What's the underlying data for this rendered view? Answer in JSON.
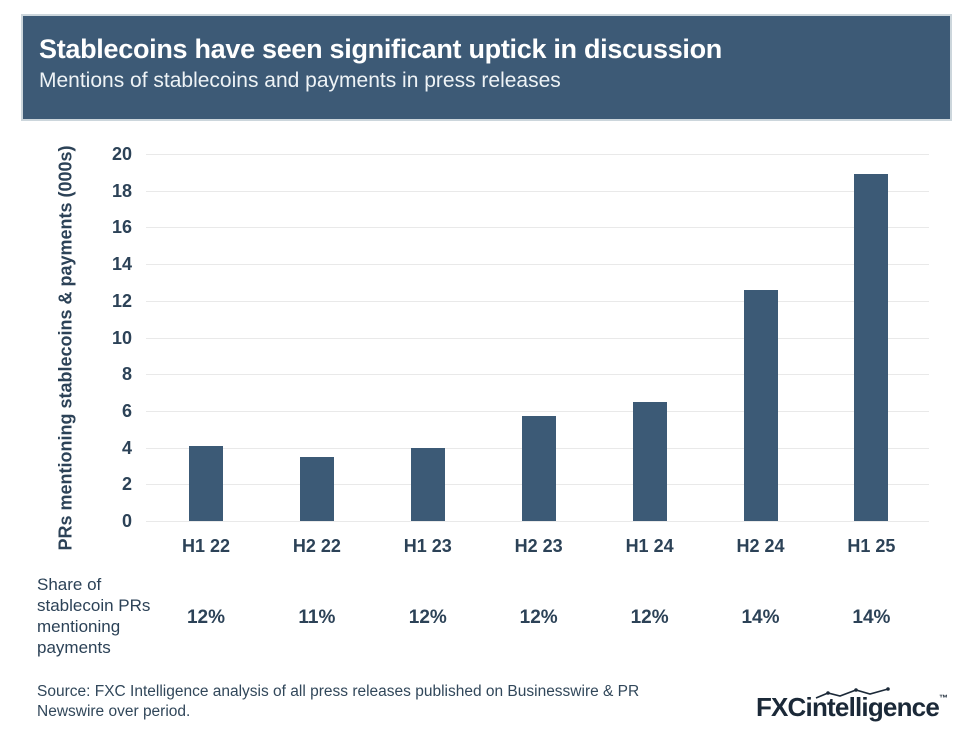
{
  "header": {
    "title": "Stablecoins have seen significant uptick in discussion",
    "subtitle": "Mentions of stablecoins and payments in press releases"
  },
  "chart_data": {
    "type": "bar",
    "categories": [
      "H1 22",
      "H2 22",
      "H1 23",
      "H2 23",
      "H1 24",
      "H2 24",
      "H1 25"
    ],
    "values": [
      4.1,
      3.5,
      4.0,
      5.7,
      6.5,
      12.6,
      18.9
    ],
    "title": "Stablecoins have seen significant uptick in discussion",
    "subtitle": "Mentions of stablecoins and payments in press releases",
    "xlabel": "",
    "ylabel": "PRs mentioning stablecoins & payments (000s)",
    "ylim": [
      0,
      20
    ],
    "ytick_step": 2,
    "grid": true,
    "legend": "none"
  },
  "share_row": {
    "label_lines": [
      "Share of",
      "stablecoin PRs",
      "mentioning",
      "payments"
    ],
    "values": [
      "12%",
      "11%",
      "12%",
      "12%",
      "12%",
      "14%",
      "14%"
    ]
  },
  "footer": {
    "source_lines": [
      "Source: FXC Intelligence analysis of all press releases published on Businesswire & PR",
      "Newswire over period."
    ],
    "logo": {
      "bold": "FXC",
      "rest": "intelligence",
      "tm": "™"
    }
  },
  "colors": {
    "header_bg": "#3d5a76",
    "bar": "#3c5a76",
    "axis_text": "#2c4257",
    "gridline": "#e9e9e9",
    "logo": "#1b2938"
  }
}
